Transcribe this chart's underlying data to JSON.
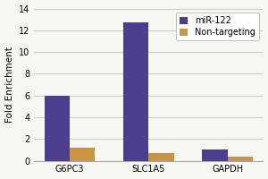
{
  "categories": [
    "G6PC3",
    "SLC1A5",
    "GAPDH"
  ],
  "series": {
    "miR-122": [
      6.0,
      12.7,
      1.0
    ],
    "Non-targeting": [
      1.2,
      0.7,
      0.4
    ]
  },
  "colors": {
    "miR-122": "#4B3F8D",
    "Non-targeting": "#C8963E"
  },
  "ylabel": "Fold Enrichment",
  "ylim": [
    0,
    14
  ],
  "yticks": [
    0,
    2,
    4,
    6,
    8,
    10,
    12,
    14
  ],
  "legend_loc": "upper right",
  "bar_width": 0.32,
  "background_color": "#f7f7f2",
  "grid_color": "#cccccc",
  "label_fontsize": 7.5,
  "tick_fontsize": 7,
  "legend_fontsize": 7
}
